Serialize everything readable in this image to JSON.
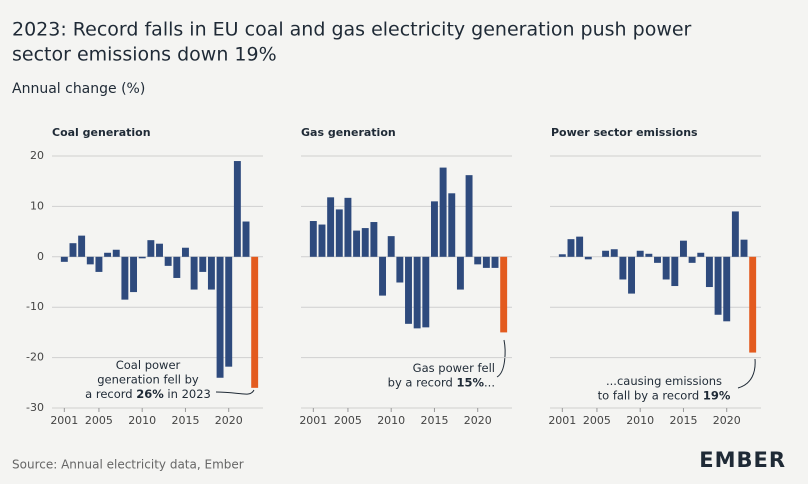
{
  "header": {
    "title_lines": [
      "2023: Record falls in EU coal and gas electricity generation push power",
      "sector emissions down 19%"
    ],
    "subtitle": "Annual change (%)",
    "source": "Source: Annual electricity data, Ember",
    "logo": "EMBER"
  },
  "chart_data": [
    {
      "type": "bar",
      "title": "Coal generation",
      "x": [
        2001,
        2002,
        2003,
        2004,
        2005,
        2006,
        2007,
        2008,
        2009,
        2010,
        2011,
        2012,
        2013,
        2014,
        2015,
        2016,
        2017,
        2018,
        2019,
        2020,
        2021,
        2022,
        2023
      ],
      "values": [
        -1,
        2.7,
        4.2,
        -1.5,
        -3,
        0.8,
        1.4,
        -8.5,
        -7,
        -0.3,
        3.3,
        2.6,
        -1.8,
        -4.2,
        1.8,
        -6.5,
        -3,
        -6.5,
        -24,
        -21.8,
        19,
        7,
        -26
      ],
      "colors": [
        "#2e4a7d",
        "#2e4a7d",
        "#2e4a7d",
        "#2e4a7d",
        "#2e4a7d",
        "#2e4a7d",
        "#2e4a7d",
        "#2e4a7d",
        "#2e4a7d",
        "#2e4a7d",
        "#2e4a7d",
        "#2e4a7d",
        "#2e4a7d",
        "#2e4a7d",
        "#2e4a7d",
        "#2e4a7d",
        "#2e4a7d",
        "#2e4a7d",
        "#2e4a7d",
        "#2e4a7d",
        "#2e4a7d",
        "#2e4a7d",
        "#e35b1f"
      ],
      "xlim": [
        2000.5,
        2023.5
      ],
      "xticks": [
        2001,
        2005,
        2010,
        2015,
        2020
      ],
      "ylim": [
        -30,
        20
      ],
      "yticks": [
        -30,
        -20,
        -10,
        0,
        10,
        20
      ],
      "show_ytick_labels": true,
      "grid": true,
      "annotation": [
        [
          "Coal power"
        ],
        [
          "generation fell by"
        ],
        [
          "a record ",
          "26%",
          " in 2023"
        ]
      ]
    },
    {
      "type": "bar",
      "title": "Gas generation",
      "x": [
        2001,
        2002,
        2003,
        2004,
        2005,
        2006,
        2007,
        2008,
        2009,
        2010,
        2011,
        2012,
        2013,
        2014,
        2015,
        2016,
        2017,
        2018,
        2019,
        2020,
        2021,
        2022,
        2023
      ],
      "values": [
        7.1,
        6.4,
        11.8,
        9.4,
        11.7,
        5.2,
        5.7,
        6.9,
        -7.7,
        4.1,
        -5.1,
        -13.3,
        -14.2,
        -14,
        11,
        17.7,
        12.6,
        -6.5,
        16.2,
        -1.5,
        -2.2,
        -2.2,
        -15
      ],
      "colors": [
        "#2e4a7d",
        "#2e4a7d",
        "#2e4a7d",
        "#2e4a7d",
        "#2e4a7d",
        "#2e4a7d",
        "#2e4a7d",
        "#2e4a7d",
        "#2e4a7d",
        "#2e4a7d",
        "#2e4a7d",
        "#2e4a7d",
        "#2e4a7d",
        "#2e4a7d",
        "#2e4a7d",
        "#2e4a7d",
        "#2e4a7d",
        "#2e4a7d",
        "#2e4a7d",
        "#2e4a7d",
        "#2e4a7d",
        "#2e4a7d",
        "#e35b1f"
      ],
      "xlim": [
        2000.5,
        2023.5
      ],
      "xticks": [
        2001,
        2005,
        2010,
        2015,
        2020
      ],
      "ylim": [
        -30,
        20
      ],
      "yticks": [
        -30,
        -20,
        -10,
        0,
        10,
        20
      ],
      "show_ytick_labels": false,
      "grid": true,
      "annotation": [
        [
          "Gas power fell"
        ],
        [
          "by a record ",
          "15%",
          "..."
        ]
      ]
    },
    {
      "type": "bar",
      "title": "Power sector emissions",
      "x": [
        2001,
        2002,
        2003,
        2004,
        2005,
        2006,
        2007,
        2008,
        2009,
        2010,
        2011,
        2012,
        2013,
        2014,
        2015,
        2016,
        2017,
        2018,
        2019,
        2020,
        2021,
        2022,
        2023
      ],
      "values": [
        0.5,
        3.5,
        4,
        -0.5,
        0,
        1.2,
        1.5,
        -4.5,
        -7.3,
        1.2,
        0.6,
        -1.2,
        -4.5,
        -5.8,
        3.2,
        -1.2,
        0.8,
        -6,
        -11.5,
        -12.8,
        9,
        3.4,
        -19
      ],
      "colors": [
        "#2e4a7d",
        "#2e4a7d",
        "#2e4a7d",
        "#2e4a7d",
        "#2e4a7d",
        "#2e4a7d",
        "#2e4a7d",
        "#2e4a7d",
        "#2e4a7d",
        "#2e4a7d",
        "#2e4a7d",
        "#2e4a7d",
        "#2e4a7d",
        "#2e4a7d",
        "#2e4a7d",
        "#2e4a7d",
        "#2e4a7d",
        "#2e4a7d",
        "#2e4a7d",
        "#2e4a7d",
        "#2e4a7d",
        "#2e4a7d",
        "#e35b1f"
      ],
      "xlim": [
        2000.5,
        2023.5
      ],
      "xticks": [
        2001,
        2005,
        2010,
        2015,
        2020
      ],
      "ylim": [
        -30,
        20
      ],
      "yticks": [
        -30,
        -20,
        -10,
        0,
        10,
        20
      ],
      "show_ytick_labels": false,
      "grid": true,
      "annotation": [
        [
          "...causing emissions"
        ],
        [
          "to fall by a record ",
          "19%"
        ]
      ]
    }
  ]
}
